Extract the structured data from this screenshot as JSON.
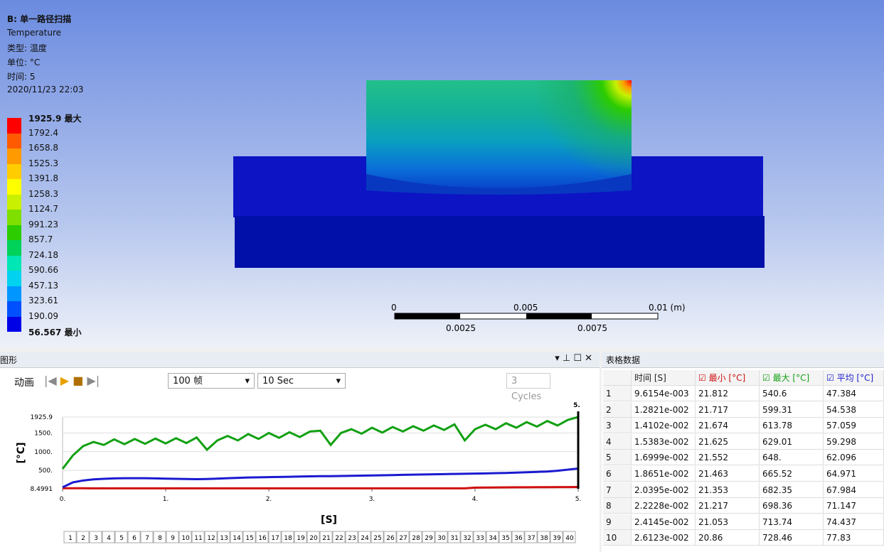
{
  "viewport": {
    "header": {
      "title": "B: 单一路径扫描",
      "result": "Temperature",
      "type": "类型: 温度",
      "unit": "单位: °C",
      "time": "时间: 5",
      "date": "2020/11/23 22:03"
    },
    "legend": {
      "values": [
        1925.9,
        1792.4,
        1658.8,
        1525.3,
        1391.8,
        1258.3,
        1124.7,
        991.23,
        857.7,
        724.18,
        590.66,
        457.13,
        323.61,
        190.09,
        56.567
      ],
      "max_tag": "最大",
      "min_tag": "最小",
      "colors": [
        "#ff0000",
        "#ff5a00",
        "#ff9a00",
        "#ffcc00",
        "#ffff00",
        "#c8f000",
        "#7fe000",
        "#2ccc00",
        "#00d25a",
        "#00e6b4",
        "#00d2f0",
        "#0096ff",
        "#0050ff",
        "#0000e6"
      ]
    },
    "scale_bar": {
      "top": [
        "0",
        "0.005",
        "0.01 (m)"
      ],
      "bottom": [
        "0.0025",
        "0.0075"
      ]
    }
  },
  "graph_panel": {
    "title": "图形",
    "toolbar": {
      "animate": "动画",
      "frames": "100 帧",
      "duration": "10 Sec",
      "cycles": "3 Cycles"
    },
    "chart_data": {
      "type": "line",
      "x_label": "[S]",
      "y_label": "[°C]",
      "x": [
        0,
        0.1,
        0.2,
        0.3,
        0.4,
        0.5,
        0.6,
        0.7,
        0.8,
        0.9,
        1,
        1.1,
        1.2,
        1.3,
        1.4,
        1.5,
        1.6,
        1.7,
        1.8,
        1.9,
        2,
        2.1,
        2.2,
        2.3,
        2.4,
        2.5,
        2.6,
        2.7,
        2.8,
        2.9,
        3,
        3.1,
        3.2,
        3.3,
        3.4,
        3.5,
        3.6,
        3.7,
        3.8,
        3.9,
        4,
        4.1,
        4.2,
        4.3,
        4.4,
        4.5,
        4.6,
        4.7,
        4.8,
        4.9,
        5
      ],
      "xlim": [
        0,
        5
      ],
      "xticks": [
        {
          "value": 0,
          "label": "0."
        },
        {
          "value": 1,
          "label": "1."
        },
        {
          "value": 2,
          "label": "2."
        },
        {
          "value": 3,
          "label": "3."
        },
        {
          "value": 4,
          "label": "4."
        },
        {
          "value": 5,
          "label": "5."
        }
      ],
      "ylim": [
        8.4991,
        1925.9
      ],
      "yticks": [
        8.4991,
        {
          "value": 500,
          "label": "500."
        },
        {
          "value": 1000,
          "label": "1000."
        },
        {
          "value": 1500,
          "label": "1500."
        },
        1925.9
      ],
      "cursor": {
        "value": 5,
        "label": "5."
      },
      "series": [
        {
          "name": "最小",
          "color": "#d01010",
          "values": [
            21.812,
            21.7,
            21.6,
            21.5,
            21.4,
            21.3,
            21.2,
            21.1,
            21,
            21,
            21,
            21,
            21,
            21,
            21,
            21,
            21,
            21,
            21,
            21,
            21,
            21,
            21,
            21,
            21,
            21,
            21,
            21,
            21,
            21,
            21,
            21,
            21,
            21,
            21,
            21,
            21,
            21,
            21,
            21,
            40,
            42,
            44,
            46,
            48,
            50,
            51,
            52,
            53,
            54,
            55
          ]
        },
        {
          "name": "最大",
          "color": "#12a012",
          "values": [
            540,
            900,
            1150,
            1260,
            1180,
            1330,
            1200,
            1340,
            1210,
            1350,
            1220,
            1360,
            1230,
            1380,
            1050,
            1300,
            1420,
            1300,
            1470,
            1340,
            1500,
            1370,
            1520,
            1390,
            1540,
            1560,
            1180,
            1500,
            1600,
            1480,
            1640,
            1510,
            1660,
            1540,
            1680,
            1560,
            1700,
            1580,
            1730,
            1300,
            1600,
            1720,
            1600,
            1760,
            1640,
            1790,
            1670,
            1820,
            1700,
            1850,
            1925.9
          ]
        },
        {
          "name": "平均",
          "color": "#1a1ad0",
          "values": [
            47.384,
            180,
            230,
            260,
            275,
            285,
            290,
            292,
            290,
            285,
            280,
            275,
            270,
            265,
            270,
            280,
            290,
            300,
            310,
            315,
            320,
            325,
            330,
            335,
            340,
            345,
            345,
            350,
            355,
            360,
            365,
            370,
            375,
            380,
            385,
            390,
            395,
            400,
            405,
            410,
            415,
            420,
            425,
            430,
            440,
            450,
            460,
            470,
            490,
            520,
            550
          ]
        }
      ]
    },
    "timeline": [
      1,
      2,
      3,
      4,
      5,
      6,
      7,
      8,
      9,
      10,
      11,
      12,
      13,
      14,
      15,
      16,
      17,
      18,
      19,
      20,
      21,
      22,
      23,
      24,
      25,
      26,
      27,
      28,
      29,
      30,
      31,
      32,
      33,
      34,
      35,
      36,
      37,
      38,
      39,
      40
    ]
  },
  "table_panel": {
    "title": "表格数据",
    "columns": [
      "时间 [S]",
      "最小 [°C]",
      "最大 [°C]",
      "平均 [°C]"
    ],
    "column_colors": [
      "#222222",
      "#d01010",
      "#12a012",
      "#1a1ad0"
    ],
    "rows": [
      [
        "1",
        "9.6154e-003",
        "21.812",
        "540.6",
        "47.384"
      ],
      [
        "2",
        "1.2821e-002",
        "21.717",
        "599.31",
        "54.538"
      ],
      [
        "3",
        "1.4102e-002",
        "21.674",
        "613.78",
        "57.059"
      ],
      [
        "4",
        "1.5383e-002",
        "21.625",
        "629.01",
        "59.298"
      ],
      [
        "5",
        "1.6999e-002",
        "21.552",
        "648.",
        "62.096"
      ],
      [
        "6",
        "1.8651e-002",
        "21.463",
        "665.52",
        "64.971"
      ],
      [
        "7",
        "2.0395e-002",
        "21.353",
        "682.35",
        "67.984"
      ],
      [
        "8",
        "2.2228e-002",
        "21.217",
        "698.36",
        "71.147"
      ],
      [
        "9",
        "2.4145e-002",
        "21.053",
        "713.74",
        "74.437"
      ],
      [
        "10",
        "2.6123e-002",
        "20.86",
        "728.46",
        "77.83"
      ]
    ]
  }
}
